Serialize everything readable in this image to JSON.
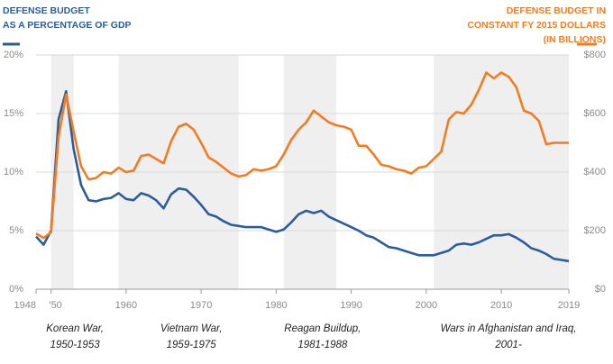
{
  "chart_data": {
    "type": "line",
    "left_title": [
      "DEFENSE BUDGET",
      "AS A PERCENTAGE OF GDP"
    ],
    "right_title": [
      "DEFENSE BUDGET IN",
      "CONSTANT FY 2015 DOLLARS",
      "(IN BILLIONS)"
    ],
    "x": [
      1948,
      1949,
      1950,
      1951,
      1952,
      1953,
      1954,
      1955,
      1956,
      1957,
      1958,
      1959,
      1960,
      1961,
      1962,
      1963,
      1964,
      1965,
      1966,
      1967,
      1968,
      1969,
      1970,
      1971,
      1972,
      1973,
      1974,
      1975,
      1976,
      1977,
      1978,
      1979,
      1980,
      1981,
      1982,
      1983,
      1984,
      1985,
      1986,
      1987,
      1988,
      1989,
      1990,
      1991,
      1992,
      1993,
      1994,
      1995,
      1996,
      1997,
      1998,
      1999,
      2000,
      2001,
      2002,
      2003,
      2004,
      2005,
      2006,
      2007,
      2008,
      2009,
      2010,
      2011,
      2012,
      2013,
      2014,
      2015,
      2016,
      2017,
      2018,
      2019
    ],
    "series": [
      {
        "color": "#2b5c9b",
        "axis": "y",
        "values": [
          4.5,
          3.8,
          5.0,
          14.5,
          16.9,
          12.0,
          8.9,
          7.6,
          7.5,
          7.7,
          7.8,
          8.2,
          7.7,
          7.6,
          8.2,
          8.0,
          7.6,
          6.9,
          8.1,
          8.6,
          8.5,
          7.9,
          7.2,
          6.4,
          6.2,
          5.8,
          5.5,
          5.4,
          5.3,
          5.3,
          5.3,
          5.1,
          4.9,
          5.1,
          5.7,
          6.4,
          6.7,
          6.5,
          6.7,
          6.2,
          5.9,
          5.6,
          5.3,
          5.0,
          4.6,
          4.4,
          4.0,
          3.6,
          3.5,
          3.3,
          3.1,
          2.9,
          2.9,
          2.9,
          3.1,
          3.3,
          3.8,
          3.9,
          3.8,
          4.0,
          4.3,
          4.6,
          4.6,
          4.7,
          4.4,
          4.0,
          3.5,
          3.3,
          3.0,
          2.6,
          2.5,
          2.4
        ]
      },
      {
        "color": "#f47b20",
        "axis": "y2",
        "values": [
          190,
          175,
          195,
          520,
          665,
          540,
          420,
          375,
          380,
          400,
          395,
          415,
          400,
          405,
          455,
          460,
          445,
          430,
          505,
          555,
          565,
          545,
          500,
          450,
          435,
          415,
          395,
          385,
          390,
          410,
          405,
          410,
          420,
          460,
          510,
          545,
          570,
          610,
          590,
          570,
          560,
          555,
          545,
          490,
          490,
          460,
          425,
          420,
          410,
          405,
          395,
          415,
          420,
          445,
          470,
          580,
          605,
          600,
          630,
          680,
          740,
          720,
          740,
          725,
          690,
          610,
          600,
          575,
          495,
          500,
          500,
          500
        ]
      }
    ],
    "xlim": [
      1948,
      2019
    ],
    "xticks": [
      1948,
      {
        "value": 1950,
        "label": "'50"
      },
      1960,
      1970,
      1980,
      1990,
      2000,
      2010,
      2019
    ],
    "ylim": [
      0,
      20
    ],
    "yticks": [
      {
        "value": 0,
        "label": "0%"
      },
      {
        "value": 5,
        "label": "5%"
      },
      {
        "value": 10,
        "label": "10%"
      },
      {
        "value": 15,
        "label": "15%"
      },
      {
        "value": 20,
        "label": "20%"
      }
    ],
    "y2lim": [
      0,
      800
    ],
    "y2ticks": [
      {
        "value": 0,
        "label": "$0"
      },
      {
        "value": 200,
        "label": "$200"
      },
      {
        "value": 400,
        "label": "$400"
      },
      {
        "value": 600,
        "label": "$600"
      },
      {
        "value": 800,
        "label": "$800"
      }
    ],
    "grid": true,
    "bands": [
      {
        "start": 1950,
        "end": 1953,
        "label": [
          "Korean War,",
          "1950-1953"
        ]
      },
      {
        "start": 1959,
        "end": 1975,
        "label": [
          "Vietnam War,",
          "1959-1975"
        ]
      },
      {
        "start": 1981,
        "end": 1988,
        "label": [
          "Reagan Buildup,",
          "1981-1988"
        ]
      },
      {
        "start": 2001,
        "label": [
          "Wars in Afghanistan and Iraq,",
          "2001-"
        ]
      }
    ]
  }
}
